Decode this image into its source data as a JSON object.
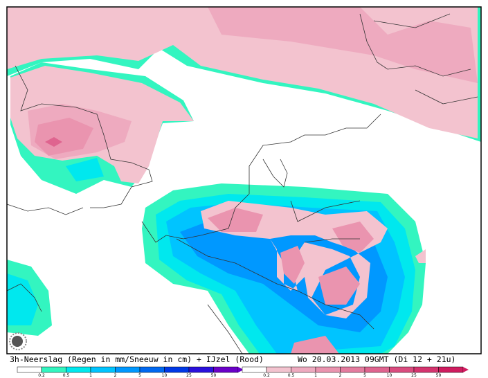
{
  "caption": {
    "left": "3h-Neerslag (Regen in mm/Sneeuw in cm) + IJzel (Rood)",
    "right": "Wo 20.03.2013 09GMT (Di 12 + 21u)"
  },
  "legends": [
    {
      "labels": [
        "0.2",
        "0.5",
        "1",
        "2",
        "5",
        "10",
        "25",
        "50"
      ],
      "colors": [
        "#33f5c0",
        "#00e8ee",
        "#00c4ff",
        "#0098ff",
        "#0068f0",
        "#0038e6",
        "#2a10dc",
        "#6a00c8"
      ]
    },
    {
      "labels": [
        "0.2",
        "0.5",
        "1",
        "2",
        "5",
        "10",
        "25",
        "50"
      ],
      "colors": [
        "#f3c3cf",
        "#eeaabf",
        "#ea94af",
        "#e47c9f",
        "#df648f",
        "#da4c7f",
        "#d5346f",
        "#cf1c5f"
      ]
    }
  ]
}
